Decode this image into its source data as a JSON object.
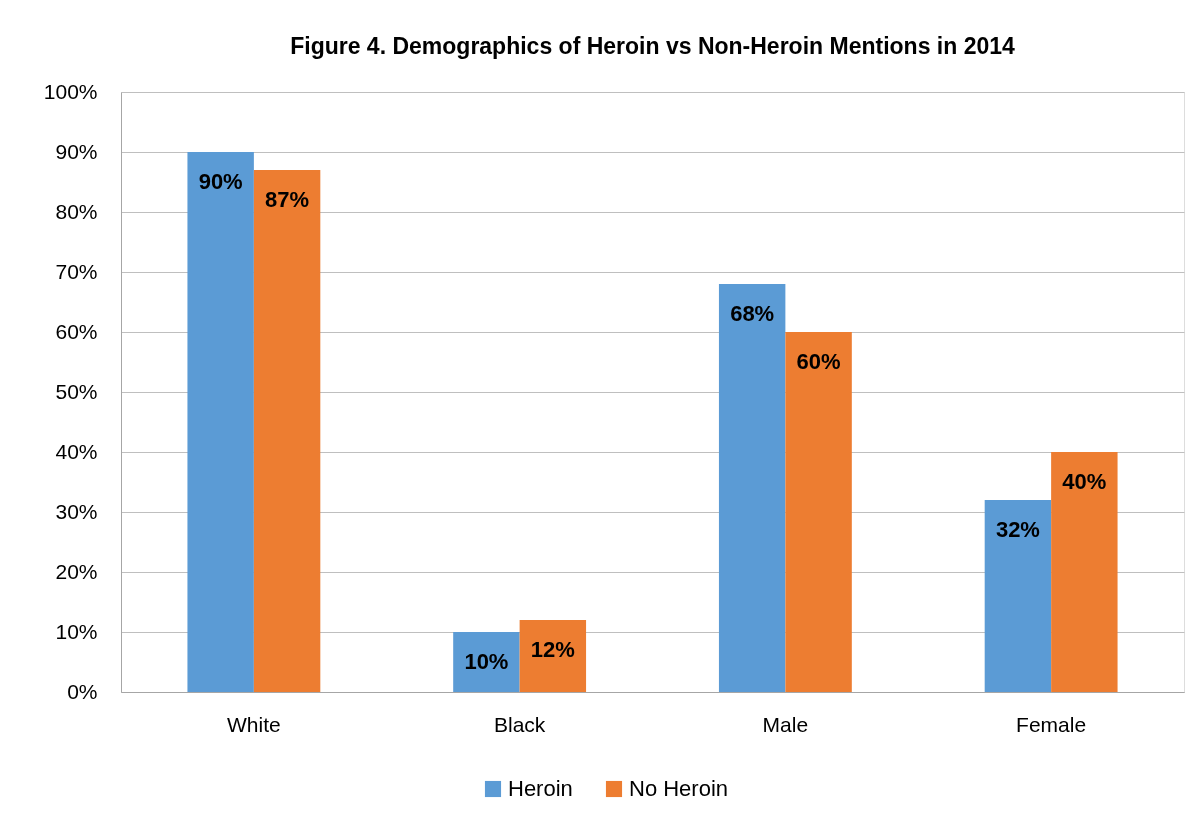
{
  "chart_data": {
    "type": "bar",
    "title": "Figure 4. Demographics of Heroin vs Non-Heroin Mentions in 2014",
    "categories": [
      "White",
      "Black",
      "Male",
      "Female"
    ],
    "series": [
      {
        "name": "Heroin",
        "color": "#5b9bd5",
        "values": [
          90,
          10,
          68,
          32
        ],
        "value_labels": [
          "90%",
          "10%",
          "68%",
          "32%"
        ]
      },
      {
        "name": "No Heroin",
        "color": "#ed7d31",
        "values": [
          87,
          12,
          60,
          40
        ],
        "value_labels": [
          "87%",
          "12%",
          "60%",
          "40%"
        ]
      }
    ],
    "ylim": [
      0,
      100
    ],
    "yticks": [
      {
        "value": 0,
        "label": "0%"
      },
      {
        "value": 10,
        "label": "10%"
      },
      {
        "value": 20,
        "label": "20%"
      },
      {
        "value": 30,
        "label": "30%"
      },
      {
        "value": 40,
        "label": "40%"
      },
      {
        "value": 50,
        "label": "50%"
      },
      {
        "value": 60,
        "label": "60%"
      },
      {
        "value": 70,
        "label": "70%"
      },
      {
        "value": 80,
        "label": "80%"
      },
      {
        "value": 90,
        "label": "90%"
      },
      {
        "value": 100,
        "label": "100%"
      }
    ],
    "grid": "y",
    "legend": "bottom"
  }
}
